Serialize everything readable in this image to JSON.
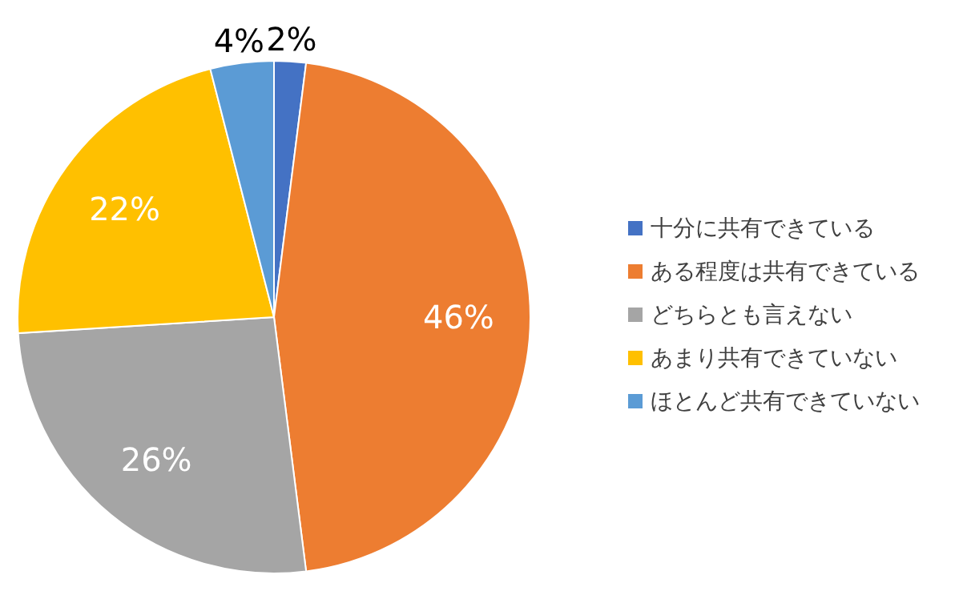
{
  "chart_data": {
    "type": "pie",
    "categories": [
      "十分に共有できている",
      "ある程度は共有できている",
      "どちらとも言えない",
      "あまり共有できていない",
      "ほとんど共有できていない"
    ],
    "values": [
      2,
      46,
      26,
      22,
      4
    ],
    "colors": [
      "#4472c4",
      "#ed7d31",
      "#a5a5a5",
      "#ffc000",
      "#5b9bd5"
    ],
    "value_labels": [
      "2%",
      "46%",
      "26%",
      "22%",
      "4%"
    ],
    "legend": "right"
  }
}
